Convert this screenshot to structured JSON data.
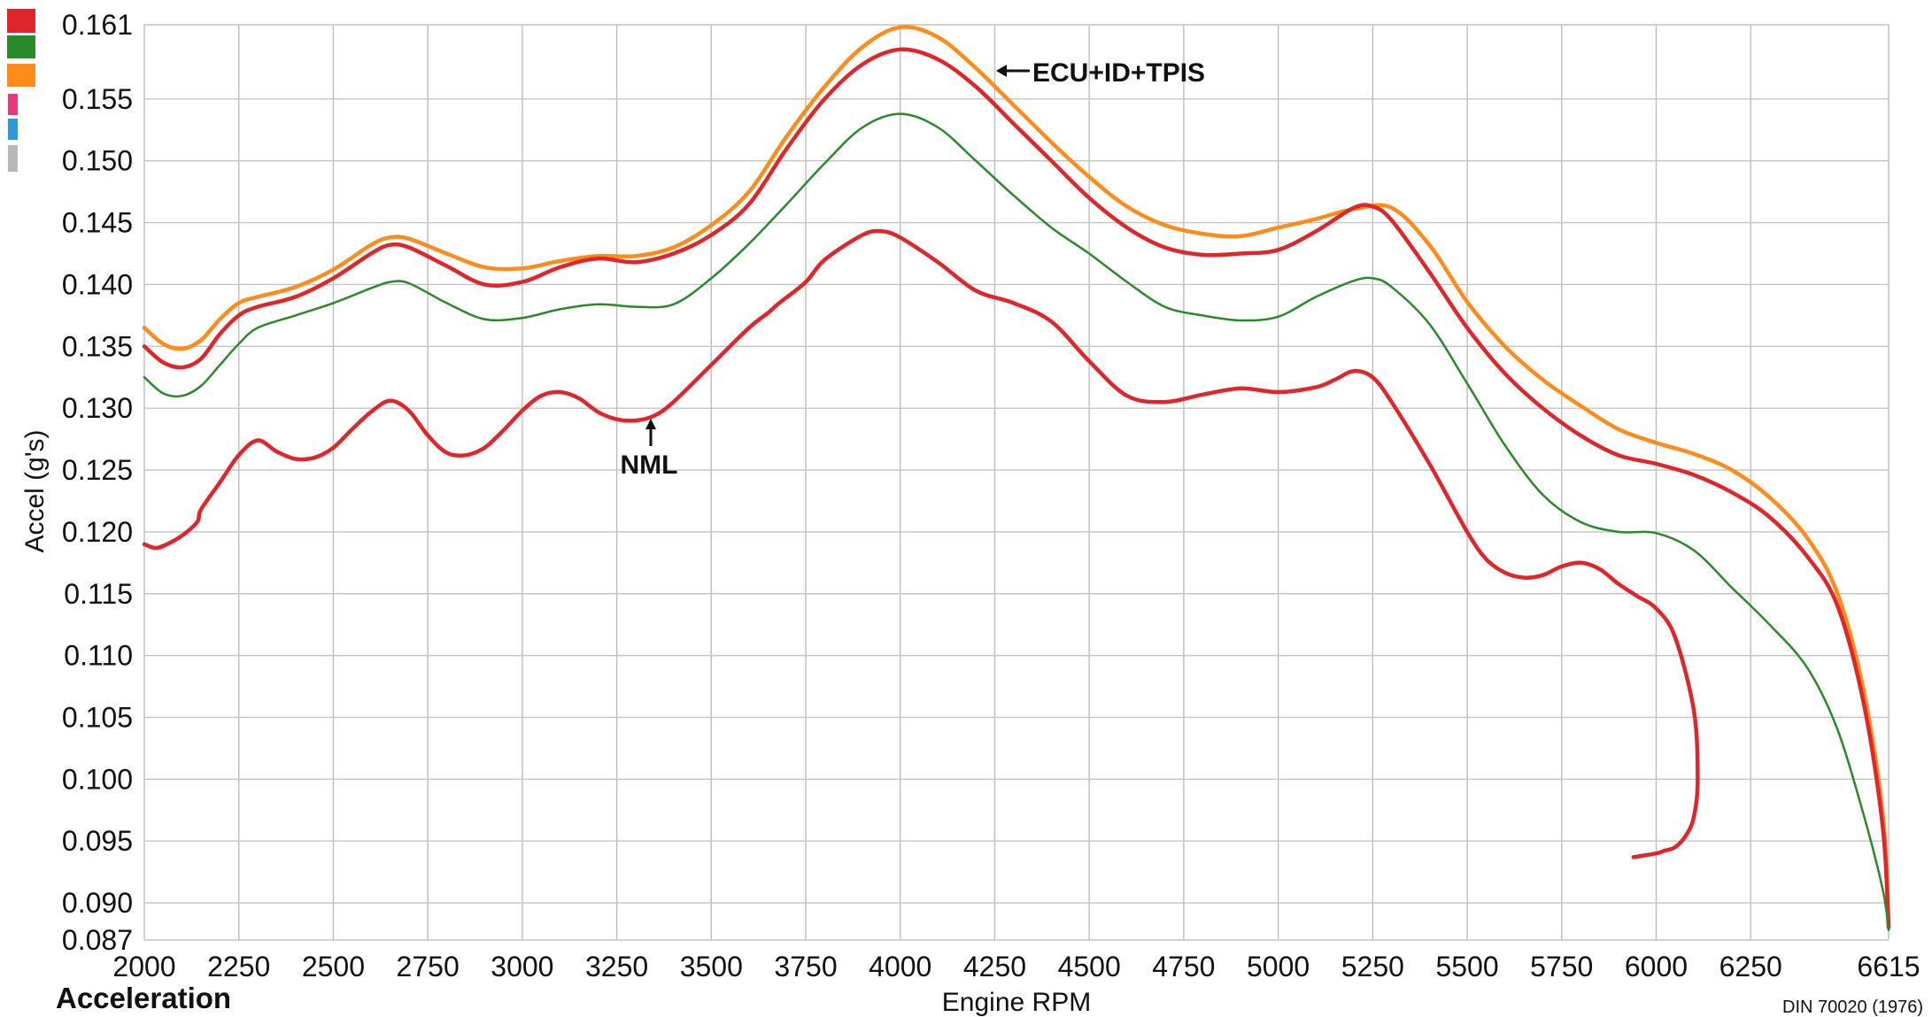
{
  "footer": {
    "title_left": "Acceleration",
    "note_right": "DIN 70020 (1976)"
  },
  "legend": {
    "swatches": [
      {
        "color": "#e0262a",
        "name": "red-swatch"
      },
      {
        "color": "#2a8a2a",
        "name": "green-swatch"
      },
      {
        "color": "#ff8c1a",
        "name": "orange-swatch"
      },
      {
        "color": "#e83a7a",
        "name": "pink-swatch"
      },
      {
        "color": "#2a9ad6",
        "name": "blue-swatch"
      },
      {
        "color": "#b8b8b8",
        "name": "gray-swatch"
      }
    ]
  },
  "chart_data": {
    "type": "line",
    "xlabel": "Engine RPM",
    "ylabel": "Accel (g's)",
    "xlim": [
      2000,
      6615
    ],
    "ylim": [
      0.087,
      0.161
    ],
    "x_ticks": [
      2000,
      2250,
      2500,
      2750,
      3000,
      3250,
      3500,
      3750,
      4000,
      4250,
      4500,
      4750,
      5000,
      5250,
      5500,
      5750,
      6000,
      6250,
      6615
    ],
    "x_tick_labels": [
      "2000",
      "2250",
      "2500",
      "2750",
      "3000",
      "3250",
      "3500",
      "3750",
      "4000",
      "4250",
      "4500",
      "4750",
      "5000",
      "5250",
      "5500",
      "5750",
      "6000",
      "6250",
      "6615"
    ],
    "y_ticks": [
      0.087,
      0.09,
      0.095,
      0.1,
      0.105,
      0.11,
      0.115,
      0.12,
      0.125,
      0.13,
      0.135,
      0.14,
      0.145,
      0.15,
      0.155,
      0.161
    ],
    "y_tick_labels": [
      "0.087",
      "0.090",
      "0.095",
      "0.100",
      "0.105",
      "0.110",
      "0.115",
      "0.120",
      "0.125",
      "0.130",
      "0.135",
      "0.140",
      "0.145",
      "0.150",
      "0.155",
      "0.161"
    ],
    "grid": true,
    "annotations": [
      {
        "text": "ECU+ID+TPIS",
        "arrow": "left",
        "points_to": [
          4240,
          0.1565
        ]
      },
      {
        "text": "NML",
        "arrow": "up",
        "points_to": [
          3330,
          0.129
        ]
      }
    ],
    "series": [
      {
        "color": "#ff8c1a",
        "width": 4.5,
        "points": [
          [
            2000,
            0.1365
          ],
          [
            2050,
            0.1352
          ],
          [
            2100,
            0.1348
          ],
          [
            2150,
            0.1355
          ],
          [
            2200,
            0.1372
          ],
          [
            2250,
            0.1385
          ],
          [
            2300,
            0.139
          ],
          [
            2400,
            0.1398
          ],
          [
            2500,
            0.1412
          ],
          [
            2600,
            0.1432
          ],
          [
            2650,
            0.1438
          ],
          [
            2700,
            0.1437
          ],
          [
            2800,
            0.1425
          ],
          [
            2900,
            0.1414
          ],
          [
            3000,
            0.1413
          ],
          [
            3100,
            0.1419
          ],
          [
            3200,
            0.1423
          ],
          [
            3300,
            0.1423
          ],
          [
            3400,
            0.143
          ],
          [
            3500,
            0.1448
          ],
          [
            3600,
            0.1475
          ],
          [
            3700,
            0.152
          ],
          [
            3800,
            0.156
          ],
          [
            3900,
            0.1592
          ],
          [
            4000,
            0.1608
          ],
          [
            4100,
            0.16
          ],
          [
            4200,
            0.1575
          ],
          [
            4300,
            0.1545
          ],
          [
            4400,
            0.1515
          ],
          [
            4500,
            0.1487
          ],
          [
            4600,
            0.1463
          ],
          [
            4700,
            0.1448
          ],
          [
            4800,
            0.1441
          ],
          [
            4900,
            0.1439
          ],
          [
            5000,
            0.1446
          ],
          [
            5100,
            0.1453
          ],
          [
            5200,
            0.1461
          ],
          [
            5300,
            0.1462
          ],
          [
            5400,
            0.1432
          ],
          [
            5500,
            0.1386
          ],
          [
            5600,
            0.135
          ],
          [
            5700,
            0.1323
          ],
          [
            5800,
            0.1302
          ],
          [
            5900,
            0.1283
          ],
          [
            6000,
            0.1272
          ],
          [
            6100,
            0.1263
          ],
          [
            6200,
            0.125
          ],
          [
            6300,
            0.1228
          ],
          [
            6400,
            0.1195
          ],
          [
            6480,
            0.115
          ],
          [
            6550,
            0.107
          ],
          [
            6600,
            0.097
          ],
          [
            6615,
            0.0882
          ]
        ]
      },
      {
        "color": "#e0262a",
        "width": 4.5,
        "points": [
          [
            2000,
            0.135
          ],
          [
            2050,
            0.1337
          ],
          [
            2100,
            0.1333
          ],
          [
            2150,
            0.134
          ],
          [
            2200,
            0.136
          ],
          [
            2250,
            0.1375
          ],
          [
            2300,
            0.1382
          ],
          [
            2400,
            0.139
          ],
          [
            2500,
            0.1405
          ],
          [
            2600,
            0.1425
          ],
          [
            2650,
            0.1432
          ],
          [
            2700,
            0.143
          ],
          [
            2800,
            0.1415
          ],
          [
            2900,
            0.14
          ],
          [
            3000,
            0.1402
          ],
          [
            3100,
            0.1414
          ],
          [
            3200,
            0.1421
          ],
          [
            3300,
            0.1418
          ],
          [
            3400,
            0.1425
          ],
          [
            3500,
            0.144
          ],
          [
            3600,
            0.1465
          ],
          [
            3700,
            0.151
          ],
          [
            3800,
            0.155
          ],
          [
            3900,
            0.1578
          ],
          [
            4000,
            0.159
          ],
          [
            4100,
            0.1582
          ],
          [
            4200,
            0.156
          ],
          [
            4300,
            0.153
          ],
          [
            4400,
            0.15
          ],
          [
            4500,
            0.147
          ],
          [
            4600,
            0.1446
          ],
          [
            4700,
            0.143
          ],
          [
            4800,
            0.1424
          ],
          [
            4900,
            0.1425
          ],
          [
            5000,
            0.1428
          ],
          [
            5100,
            0.1443
          ],
          [
            5200,
            0.1462
          ],
          [
            5250,
            0.1463
          ],
          [
            5300,
            0.1452
          ],
          [
            5400,
            0.141
          ],
          [
            5500,
            0.1365
          ],
          [
            5600,
            0.1328
          ],
          [
            5700,
            0.13
          ],
          [
            5800,
            0.1278
          ],
          [
            5900,
            0.1262
          ],
          [
            6000,
            0.1255
          ],
          [
            6100,
            0.1246
          ],
          [
            6200,
            0.1232
          ],
          [
            6300,
            0.1212
          ],
          [
            6400,
            0.118
          ],
          [
            6480,
            0.114
          ],
          [
            6550,
            0.106
          ],
          [
            6600,
            0.096
          ],
          [
            6615,
            0.088
          ]
        ]
      },
      {
        "color": "#2a8a2a",
        "width": 2.5,
        "points": [
          [
            2000,
            0.1325
          ],
          [
            2050,
            0.1312
          ],
          [
            2100,
            0.131
          ],
          [
            2150,
            0.1318
          ],
          [
            2200,
            0.1335
          ],
          [
            2250,
            0.1352
          ],
          [
            2300,
            0.1365
          ],
          [
            2400,
            0.1375
          ],
          [
            2500,
            0.1385
          ],
          [
            2600,
            0.1397
          ],
          [
            2650,
            0.1402
          ],
          [
            2700,
            0.1401
          ],
          [
            2800,
            0.1385
          ],
          [
            2900,
            0.1372
          ],
          [
            3000,
            0.1373
          ],
          [
            3100,
            0.138
          ],
          [
            3200,
            0.1384
          ],
          [
            3300,
            0.1382
          ],
          [
            3400,
            0.1384
          ],
          [
            3500,
            0.1405
          ],
          [
            3600,
            0.1433
          ],
          [
            3700,
            0.1465
          ],
          [
            3800,
            0.1498
          ],
          [
            3900,
            0.1527
          ],
          [
            4000,
            0.1538
          ],
          [
            4100,
            0.1527
          ],
          [
            4200,
            0.15
          ],
          [
            4300,
            0.1472
          ],
          [
            4400,
            0.1446
          ],
          [
            4500,
            0.1425
          ],
          [
            4600,
            0.1402
          ],
          [
            4700,
            0.1382
          ],
          [
            4800,
            0.1375
          ],
          [
            4900,
            0.1371
          ],
          [
            5000,
            0.1374
          ],
          [
            5100,
            0.139
          ],
          [
            5200,
            0.1403
          ],
          [
            5250,
            0.1405
          ],
          [
            5300,
            0.1398
          ],
          [
            5400,
            0.1368
          ],
          [
            5500,
            0.132
          ],
          [
            5600,
            0.127
          ],
          [
            5700,
            0.123
          ],
          [
            5800,
            0.1208
          ],
          [
            5900,
            0.12
          ],
          [
            6000,
            0.1199
          ],
          [
            6100,
            0.1185
          ],
          [
            6200,
            0.1155
          ],
          [
            6300,
            0.1125
          ],
          [
            6400,
            0.109
          ],
          [
            6480,
            0.104
          ],
          [
            6550,
            0.097
          ],
          [
            6600,
            0.091
          ],
          [
            6615,
            0.0878
          ]
        ]
      },
      {
        "color": "#e0262a",
        "width": 4.5,
        "points": [
          [
            2000,
            0.119
          ],
          [
            2030,
            0.1187
          ],
          [
            2060,
            0.119
          ],
          [
            2100,
            0.1197
          ],
          [
            2140,
            0.1208
          ],
          [
            2150,
            0.1218
          ],
          [
            2200,
            0.124
          ],
          [
            2250,
            0.1262
          ],
          [
            2300,
            0.1274
          ],
          [
            2350,
            0.1265
          ],
          [
            2400,
            0.1259
          ],
          [
            2450,
            0.126
          ],
          [
            2500,
            0.1268
          ],
          [
            2550,
            0.1283
          ],
          [
            2600,
            0.1297
          ],
          [
            2650,
            0.1306
          ],
          [
            2700,
            0.1298
          ],
          [
            2750,
            0.1278
          ],
          [
            2800,
            0.1264
          ],
          [
            2850,
            0.1262
          ],
          [
            2900,
            0.1268
          ],
          [
            2950,
            0.1282
          ],
          [
            3000,
            0.1298
          ],
          [
            3050,
            0.131
          ],
          [
            3100,
            0.1313
          ],
          [
            3150,
            0.1308
          ],
          [
            3200,
            0.1297
          ],
          [
            3250,
            0.1291
          ],
          [
            3300,
            0.129
          ],
          [
            3350,
            0.1294
          ],
          [
            3400,
            0.1305
          ],
          [
            3500,
            0.1335
          ],
          [
            3600,
            0.1365
          ],
          [
            3650,
            0.1377
          ],
          [
            3680,
            0.1385
          ],
          [
            3750,
            0.1402
          ],
          [
            3800,
            0.142
          ],
          [
            3900,
            0.144
          ],
          [
            3950,
            0.1443
          ],
          [
            4000,
            0.1438
          ],
          [
            4100,
            0.1418
          ],
          [
            4200,
            0.1395
          ],
          [
            4300,
            0.1385
          ],
          [
            4400,
            0.137
          ],
          [
            4500,
            0.1338
          ],
          [
            4600,
            0.131
          ],
          [
            4700,
            0.1305
          ],
          [
            4800,
            0.1311
          ],
          [
            4900,
            0.1316
          ],
          [
            5000,
            0.1313
          ],
          [
            5100,
            0.1317
          ],
          [
            5150,
            0.1323
          ],
          [
            5200,
            0.133
          ],
          [
            5250,
            0.1325
          ],
          [
            5300,
            0.1305
          ],
          [
            5400,
            0.1255
          ],
          [
            5500,
            0.12
          ],
          [
            5550,
            0.1178
          ],
          [
            5600,
            0.1167
          ],
          [
            5650,
            0.1163
          ],
          [
            5700,
            0.1165
          ],
          [
            5750,
            0.1172
          ],
          [
            5800,
            0.1175
          ],
          [
            5850,
            0.117
          ],
          [
            5900,
            0.1158
          ],
          [
            5950,
            0.1148
          ],
          [
            6000,
            0.1138
          ],
          [
            6050,
            0.1115
          ],
          [
            6100,
            0.1055
          ],
          [
            6110,
            0.1
          ],
          [
            6100,
            0.097
          ],
          [
            6080,
            0.0955
          ],
          [
            6050,
            0.0945
          ],
          [
            6020,
            0.0942
          ],
          [
            6000,
            0.094
          ],
          [
            5940,
            0.0937
          ]
        ]
      }
    ]
  }
}
